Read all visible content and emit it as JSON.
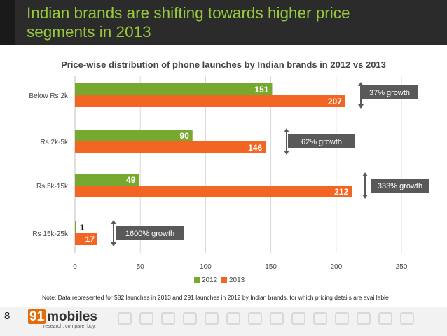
{
  "header": {
    "title_line1": "Indian brands are shifting towards higher price",
    "title_line2": "segments in 2013"
  },
  "colors": {
    "s2012": "#77a830",
    "s2013": "#f26522",
    "title": "#97c93d",
    "callout_bg": "#595959"
  },
  "chart_data": {
    "type": "bar",
    "orientation": "horizontal",
    "title": "Price-wise distribution of phone launches by Indian brands in 2012 vs 2013",
    "categories": [
      "Below Rs 2k",
      "Rs 2k-5k",
      "Rs 5k-15k",
      "Rs 15k-25k"
    ],
    "series": [
      {
        "name": "2012",
        "values": [
          151,
          90,
          49,
          1
        ]
      },
      {
        "name": "2013",
        "values": [
          207,
          146,
          212,
          17
        ]
      }
    ],
    "xlim": [
      0,
      250
    ],
    "xticks": [
      0,
      50,
      100,
      150,
      200,
      250
    ],
    "grid": true,
    "legend": "bottom",
    "annotations": [
      "37% growth",
      "62% growth",
      "333% growth",
      "1600% growth"
    ]
  },
  "note": "Note: Data represented for 582 launches in 2013 and 291 launches in 2012 by Indian brands, for which pricing details are avai lable",
  "footer": {
    "page_number": "8",
    "logo_number": "91",
    "logo_word": "mobiles",
    "logo_tagline": "research. compare. buy."
  }
}
